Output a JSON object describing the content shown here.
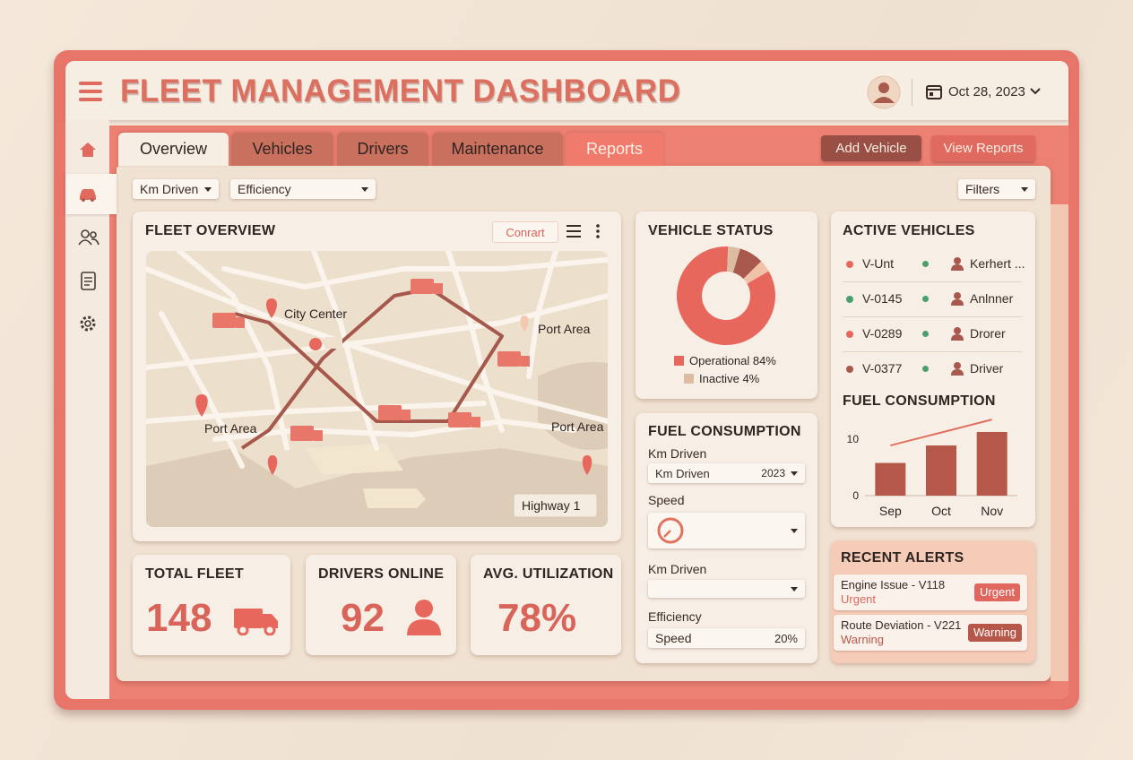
{
  "header": {
    "title": "FLEET MANAGEMENT DASHBOARD",
    "date": "Oct 28, 2023"
  },
  "tabs": [
    "Overview",
    "Vehicles",
    "Drivers",
    "Maintenance",
    "Reports"
  ],
  "actions": [
    "Add Vehicle",
    "View Reports"
  ],
  "filters": {
    "items": [
      "Km Driven",
      "Efficiency"
    ],
    "more": "Filters"
  },
  "fleet_overview": {
    "title": "FLEET OVERVIEW",
    "button": "Conrart",
    "map_labels": [
      "City Center",
      "Port Area",
      "Port Area",
      "Port Area",
      "Highway 1"
    ]
  },
  "stats": [
    {
      "label": "TOTAL FLEET",
      "value": 148
    },
    {
      "label": "DRIVERS ONLINE",
      "value": 92
    },
    {
      "label": "AVG. UTILIZATION",
      "value": "78%"
    }
  ],
  "active_vehicles": {
    "title": "ACTIVE VEHICLES",
    "rows": [
      {
        "id": "V-Unt",
        "driver": "Kerhert ..."
      },
      {
        "id": "V-0145",
        "driver": "Anlnner"
      },
      {
        "id": "V-0289",
        "driver": "Drorer"
      },
      {
        "id": "V-0377",
        "driver": "Driver"
      }
    ]
  },
  "fuel_form": {
    "title": "FUEL CONSUMPTION",
    "fields": [
      {
        "label": "Km Driven",
        "value": "Km Driven",
        "extra": "2023"
      },
      {
        "label": "Speed"
      },
      {
        "label": "Km Driven"
      },
      {
        "label": "Efficiency",
        "value": "Speed",
        "extra": "20%"
      }
    ]
  },
  "alerts": {
    "title": "RECENT ALERTS",
    "items": [
      {
        "text": "Engine Issue - V118",
        "level": "Urgent",
        "badge": "Urgent"
      },
      {
        "text": "Route Deviation - V221",
        "level": "Warning",
        "badge": "Warning"
      }
    ]
  },
  "chart_data": [
    {
      "type": "pie",
      "title": "VEHICLE STATUS",
      "donut": true,
      "categories": [
        "Operational",
        "Inactive",
        null,
        null
      ],
      "values": [
        84,
        4,
        8,
        4
      ],
      "value_labels": [
        "84%",
        "4%",
        null,
        null
      ],
      "colors": [
        "#e8675d",
        "#dcbda3",
        "#a8584c",
        "#f0c3a8"
      ]
    },
    {
      "type": "bar",
      "title": "FUEL CONSUMPTION",
      "categories": [
        "Sep",
        "Oct",
        "Nov"
      ],
      "values": [
        5.8,
        8.9,
        11.3
      ],
      "color": "#b5584a",
      "trend": [
        8.9,
        11.2,
        13.5
      ],
      "trend_color": "#e07060",
      "ylim": [
        0,
        14
      ],
      "yticks": [
        0,
        10
      ]
    }
  ]
}
